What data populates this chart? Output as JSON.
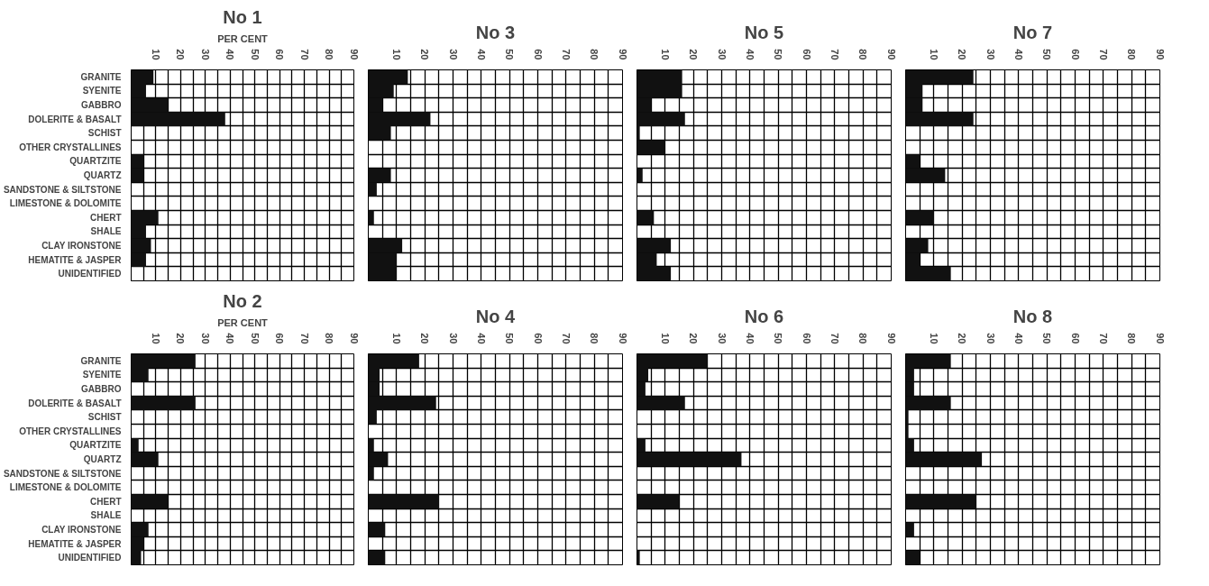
{
  "chart_data": [
    {
      "type": "bar",
      "orientation": "horizontal",
      "title": "No 1",
      "xlabel": "PER CENT",
      "categories": [
        "GRANITE",
        "SYENITE",
        "GABBRO",
        "DOLERITE & BASALT",
        "SCHIST",
        "OTHER CRYSTALLINES",
        "QUARTZITE",
        "QUARTZ",
        "SANDSTONE & SILTSTONE",
        "LIMESTONE & DOLOMITE",
        "CHERT",
        "SHALE",
        "CLAY IRONSTONE",
        "HEMATITE & JASPER",
        "UNIDENTIFIED"
      ],
      "values": [
        9,
        6,
        15,
        38,
        0,
        0,
        5,
        5,
        0,
        0,
        11,
        6,
        8,
        6,
        0
      ],
      "color": "#111111",
      "xlim": [
        0,
        90
      ],
      "xticks": [
        {
          "value": 5,
          "label": null
        },
        10,
        {
          "value": 15,
          "label": null
        },
        20,
        {
          "value": 25,
          "label": null
        },
        30,
        {
          "value": 35,
          "label": null
        },
        40,
        {
          "value": 45,
          "label": null
        },
        50,
        {
          "value": 55,
          "label": null
        },
        60,
        {
          "value": 65,
          "label": null
        },
        70,
        {
          "value": 75,
          "label": null
        },
        80,
        {
          "value": 85,
          "label": null
        },
        90
      ],
      "grid": true
    },
    {
      "type": "bar",
      "orientation": "horizontal",
      "title": "No 3",
      "categories": [
        "GRANITE",
        "SYENITE",
        "GABBRO",
        "DOLERITE & BASALT",
        "SCHIST",
        "OTHER CRYSTALLINES",
        "QUARTZITE",
        "QUARTZ",
        "SANDSTONE & SILTSTONE",
        "LIMESTONE & DOLOMITE",
        "CHERT",
        "SHALE",
        "CLAY IRONSTONE",
        "HEMATITE & JASPER",
        "UNIDENTIFIED"
      ],
      "values": [
        14,
        9,
        5,
        22,
        8,
        0,
        0,
        8,
        3,
        0,
        2,
        0,
        12,
        10,
        10
      ],
      "color": "#111111",
      "xlim": [
        0,
        90
      ],
      "xticks": [
        {
          "value": 5,
          "label": null
        },
        10,
        {
          "value": 15,
          "label": null
        },
        20,
        {
          "value": 25,
          "label": null
        },
        30,
        {
          "value": 35,
          "label": null
        },
        40,
        {
          "value": 45,
          "label": null
        },
        50,
        {
          "value": 55,
          "label": null
        },
        60,
        {
          "value": 65,
          "label": null
        },
        70,
        {
          "value": 75,
          "label": null
        },
        80,
        {
          "value": 85,
          "label": null
        },
        90
      ],
      "grid": true,
      "tick_labels": "x"
    },
    {
      "type": "bar",
      "orientation": "horizontal",
      "title": "No 5",
      "categories": [
        "GRANITE",
        "SYENITE",
        "GABBRO",
        "DOLERITE & BASALT",
        "SCHIST",
        "OTHER CRYSTALLINES",
        "QUARTZITE",
        "QUARTZ",
        "SANDSTONE & SILTSTONE",
        "LIMESTONE & DOLOMITE",
        "CHERT",
        "SHALE",
        "CLAY IRONSTONE",
        "HEMATITE & JASPER",
        "UNIDENTIFIED"
      ],
      "values": [
        16,
        16,
        5,
        17,
        1,
        10,
        0,
        2,
        0,
        0,
        6,
        0,
        12,
        7,
        12
      ],
      "color": "#111111",
      "xlim": [
        0,
        90
      ],
      "xticks": [
        {
          "value": 5,
          "label": null
        },
        10,
        {
          "value": 15,
          "label": null
        },
        20,
        {
          "value": 25,
          "label": null
        },
        30,
        {
          "value": 35,
          "label": null
        },
        40,
        {
          "value": 45,
          "label": null
        },
        50,
        {
          "value": 55,
          "label": null
        },
        60,
        {
          "value": 65,
          "label": null
        },
        70,
        {
          "value": 75,
          "label": null
        },
        80,
        {
          "value": 85,
          "label": null
        },
        90
      ],
      "grid": true,
      "tick_labels": "x"
    },
    {
      "type": "bar",
      "orientation": "horizontal",
      "title": "No 7",
      "categories": [
        "GRANITE",
        "SYENITE",
        "GABBRO",
        "DOLERITE & BASALT",
        "SCHIST",
        "OTHER CRYSTALLINES",
        "QUARTZITE",
        "QUARTZ",
        "SANDSTONE & SILTSTONE",
        "LIMESTONE & DOLOMITE",
        "CHERT",
        "SHALE",
        "CLAY IRONSTONE",
        "HEMATITE & JASPER",
        "UNIDENTIFIED"
      ],
      "values": [
        24,
        6,
        6,
        24,
        0,
        0,
        5,
        14,
        0,
        0,
        10,
        0,
        8,
        5,
        16
      ],
      "color": "#111111",
      "xlim": [
        0,
        90
      ],
      "xticks": [
        {
          "value": 5,
          "label": null
        },
        10,
        {
          "value": 15,
          "label": null
        },
        20,
        {
          "value": 25,
          "label": null
        },
        30,
        {
          "value": 35,
          "label": null
        },
        40,
        {
          "value": 45,
          "label": null
        },
        50,
        {
          "value": 55,
          "label": null
        },
        60,
        {
          "value": 65,
          "label": null
        },
        70,
        {
          "value": 75,
          "label": null
        },
        80,
        {
          "value": 85,
          "label": null
        },
        90
      ],
      "grid": true,
      "tick_labels": "x"
    },
    {
      "type": "bar",
      "orientation": "horizontal",
      "title": "No 2",
      "xlabel": "PER CENT",
      "categories": [
        "GRANITE",
        "SYENITE",
        "GABBRO",
        "DOLERITE & BASALT",
        "SCHIST",
        "OTHER CRYSTALLINES",
        "QUARTZITE",
        "QUARTZ",
        "SANDSTONE & SILTSTONE",
        "LIMESTONE & DOLOMITE",
        "CHERT",
        "SHALE",
        "CLAY IRONSTONE",
        "HEMATITE & JASPER",
        "UNIDENTIFIED"
      ],
      "values": [
        26,
        7,
        0,
        26,
        0,
        0,
        3,
        11,
        0,
        0,
        15,
        0,
        7,
        5,
        4
      ],
      "color": "#111111",
      "xlim": [
        0,
        90
      ],
      "xticks": [
        {
          "value": 5,
          "label": null
        },
        10,
        {
          "value": 15,
          "label": null
        },
        20,
        {
          "value": 25,
          "label": null
        },
        30,
        {
          "value": 35,
          "label": null
        },
        40,
        {
          "value": 45,
          "label": null
        },
        50,
        {
          "value": 55,
          "label": null
        },
        60,
        {
          "value": 65,
          "label": null
        },
        70,
        {
          "value": 75,
          "label": null
        },
        80,
        {
          "value": 85,
          "label": null
        },
        90
      ],
      "grid": true
    },
    {
      "type": "bar",
      "orientation": "horizontal",
      "title": "No 4",
      "categories": [
        "GRANITE",
        "SYENITE",
        "GABBRO",
        "DOLERITE & BASALT",
        "SCHIST",
        "OTHER CRYSTALLINES",
        "QUARTZITE",
        "QUARTZ",
        "SANDSTONE & SILTSTONE",
        "LIMESTONE & DOLOMITE",
        "CHERT",
        "SHALE",
        "CLAY IRONSTONE",
        "HEMATITE & JASPER",
        "UNIDENTIFIED"
      ],
      "values": [
        18,
        4,
        4,
        24,
        3,
        0,
        2,
        7,
        2,
        0,
        25,
        0,
        6,
        0,
        6
      ],
      "color": "#111111",
      "xlim": [
        0,
        90
      ],
      "xticks": [
        {
          "value": 5,
          "label": null
        },
        10,
        {
          "value": 15,
          "label": null
        },
        20,
        {
          "value": 25,
          "label": null
        },
        30,
        {
          "value": 35,
          "label": null
        },
        40,
        {
          "value": 45,
          "label": null
        },
        50,
        {
          "value": 55,
          "label": null
        },
        60,
        {
          "value": 65,
          "label": null
        },
        70,
        {
          "value": 75,
          "label": null
        },
        80,
        {
          "value": 85,
          "label": null
        },
        90
      ],
      "grid": true,
      "tick_labels": "x"
    },
    {
      "type": "bar",
      "orientation": "horizontal",
      "title": "No 6",
      "categories": [
        "GRANITE",
        "SYENITE",
        "GABBRO",
        "DOLERITE & BASALT",
        "SCHIST",
        "OTHER CRYSTALLINES",
        "QUARTZITE",
        "QUARTZ",
        "SANDSTONE & SILTSTONE",
        "LIMESTONE & DOLOMITE",
        "CHERT",
        "SHALE",
        "CLAY IRONSTONE",
        "HEMATITE & JASPER",
        "UNIDENTIFIED"
      ],
      "values": [
        25,
        4,
        3,
        17,
        0,
        0,
        3,
        37,
        0,
        0,
        15,
        0,
        0,
        0,
        1
      ],
      "color": "#111111",
      "xlim": [
        0,
        90
      ],
      "xticks": [
        {
          "value": 5,
          "label": null
        },
        10,
        {
          "value": 15,
          "label": null
        },
        20,
        {
          "value": 25,
          "label": null
        },
        30,
        {
          "value": 35,
          "label": null
        },
        40,
        {
          "value": 45,
          "label": null
        },
        50,
        {
          "value": 55,
          "label": null
        },
        60,
        {
          "value": 65,
          "label": null
        },
        70,
        {
          "value": 75,
          "label": null
        },
        80,
        {
          "value": 85,
          "label": null
        },
        90
      ],
      "grid": true,
      "tick_labels": "x"
    },
    {
      "type": "bar",
      "orientation": "horizontal",
      "title": "No 8",
      "categories": [
        "GRANITE",
        "SYENITE",
        "GABBRO",
        "DOLERITE & BASALT",
        "SCHIST",
        "OTHER CRYSTALLINES",
        "QUARTZITE",
        "QUARTZ",
        "SANDSTONE & SILTSTONE",
        "LIMESTONE & DOLOMITE",
        "CHERT",
        "SHALE",
        "CLAY IRONSTONE",
        "HEMATITE & JASPER",
        "UNIDENTIFIED"
      ],
      "values": [
        16,
        3,
        3,
        16,
        1,
        1,
        3,
        27,
        0,
        0,
        25,
        0,
        3,
        0,
        5
      ],
      "color": "#111111",
      "xlim": [
        0,
        90
      ],
      "xticks": [
        {
          "value": 5,
          "label": null
        },
        10,
        {
          "value": 15,
          "label": null
        },
        20,
        {
          "value": 25,
          "label": null
        },
        30,
        {
          "value": 35,
          "label": null
        },
        40,
        {
          "value": 45,
          "label": null
        },
        50,
        {
          "value": 55,
          "label": null
        },
        60,
        {
          "value": 65,
          "label": null
        },
        70,
        {
          "value": 75,
          "label": null
        },
        80,
        {
          "value": 85,
          "label": null
        },
        90
      ],
      "grid": true,
      "tick_labels": "x"
    }
  ]
}
